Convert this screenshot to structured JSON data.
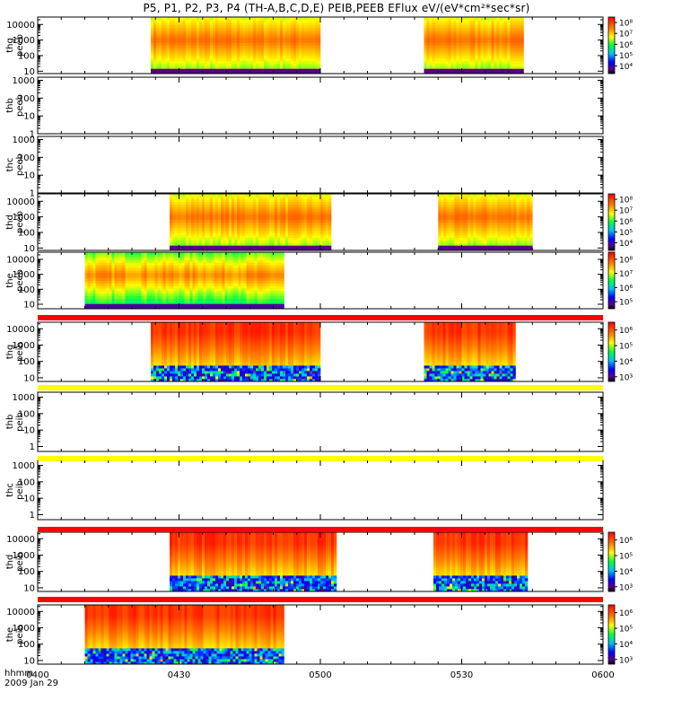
{
  "title": "P5, P1, P2, P3, P4 (TH-A,B,C,D,E) PEIB,PEEB EFlux eV/(eV*cm²*sec*sr)",
  "footer": {
    "time_label": "hhmm",
    "date_label": "2009 Jan 29"
  },
  "colors": {
    "flag_red": "#ff0000",
    "flag_yellow": "#ffff00"
  },
  "chart_data": {
    "type": "heatmap",
    "x_ticks": [
      "0400",
      "0430",
      "0500",
      "0530",
      "0600"
    ],
    "x_range": [
      "0400",
      "0600"
    ],
    "flag_bars": [
      {
        "after_panel": 4,
        "color": "red"
      },
      {
        "after_panel": 5,
        "color": "yellow"
      },
      {
        "after_panel": 6,
        "color": "yellow"
      },
      {
        "after_panel": 7,
        "color": "red"
      },
      {
        "after_panel": 8,
        "color": "red"
      }
    ],
    "panels": [
      {
        "ylabel": [
          "thg",
          "peeb"
        ],
        "yticks": [
          "10",
          "100",
          "1000",
          "10000"
        ],
        "ylog": [
          7,
          30000
        ],
        "coverage": [
          [
            "0424",
            "0500"
          ],
          [
            "0522",
            "0543"
          ]
        ],
        "colorbar": [
          "10⁴",
          "10⁵",
          "10⁶",
          "10⁷",
          "10⁸"
        ],
        "cb_range": [
          3.3,
          8.5
        ],
        "hot": [
          6.7,
          7.6
        ]
      },
      {
        "ylabel": [
          "thb",
          "peeb"
        ],
        "yticks": [
          "1",
          "10",
          "100",
          "1000"
        ],
        "ylog": [
          1,
          1500
        ],
        "coverage": [],
        "colorbar": [],
        "cb_range": [
          0,
          1
        ],
        "hot": [
          0,
          0
        ]
      },
      {
        "ylabel": [
          "thc",
          "peeb"
        ],
        "yticks": [
          "1",
          "10",
          "100",
          "1000"
        ],
        "ylog": [
          1,
          1500
        ],
        "coverage": [],
        "colorbar": [],
        "cb_range": [
          0,
          1
        ],
        "hot": [
          0,
          0
        ]
      },
      {
        "ylabel": [
          "thd",
          "peeb"
        ],
        "yticks": [
          "10",
          "100",
          "1000",
          "10000"
        ],
        "ylog": [
          7,
          30000
        ],
        "coverage": [
          [
            "0428",
            "0502"
          ],
          [
            "0525",
            "0545"
          ]
        ],
        "colorbar": [
          "10⁴",
          "10⁵",
          "10⁶",
          "10⁷",
          "10⁸"
        ],
        "cb_range": [
          3.3,
          8.5
        ],
        "hot": [
          6.7,
          7.6
        ]
      },
      {
        "ylabel": [
          "the",
          "peeb"
        ],
        "yticks": [
          "10",
          "100",
          "1000",
          "10000"
        ],
        "ylog": [
          5,
          30000
        ],
        "coverage": [
          [
            "0410",
            "0452"
          ]
        ],
        "colorbar": [
          "10⁵",
          "10⁶",
          "10⁷",
          "10⁸"
        ],
        "cb_range": [
          4.5,
          8.5
        ],
        "hot": [
          6.8,
          7.7
        ]
      },
      {
        "ylabel": [
          "thg",
          "peib"
        ],
        "yticks": [
          "10",
          "100",
          "1000",
          "10000"
        ],
        "ylog": [
          6,
          25000
        ],
        "coverage": [
          [
            "0424",
            "0500"
          ],
          [
            "0522",
            "0541"
          ]
        ],
        "colorbar": [
          "10³",
          "10⁴",
          "10⁵",
          "10⁶"
        ],
        "cb_range": [
          2.7,
          6.5
        ],
        "hot": [
          5.4,
          6.2
        ]
      },
      {
        "ylabel": [
          "thb",
          "peib"
        ],
        "yticks": [
          "1",
          "10",
          "100",
          "1000"
        ],
        "ylog": [
          0.5,
          2000
        ],
        "coverage": [],
        "colorbar": [],
        "cb_range": [
          0,
          1
        ],
        "hot": [
          0,
          0
        ]
      },
      {
        "ylabel": [
          "thc",
          "peib"
        ],
        "yticks": [
          "1",
          "10",
          "100",
          "1000"
        ],
        "ylog": [
          0.5,
          2000
        ],
        "coverage": [],
        "colorbar": [],
        "cb_range": [
          0,
          1
        ],
        "hot": [
          0,
          0
        ]
      },
      {
        "ylabel": [
          "thd",
          "peib"
        ],
        "yticks": [
          "10",
          "100",
          "1000",
          "10000"
        ],
        "ylog": [
          6,
          25000
        ],
        "coverage": [
          [
            "0428",
            "0503"
          ],
          [
            "0524",
            "0544"
          ]
        ],
        "colorbar": [
          "10³",
          "10⁴",
          "10⁵",
          "10⁶"
        ],
        "cb_range": [
          2.7,
          6.5
        ],
        "hot": [
          5.4,
          6.2
        ]
      },
      {
        "ylabel": [
          "the",
          "peib"
        ],
        "yticks": [
          "10",
          "100",
          "1000",
          "10000"
        ],
        "ylog": [
          6,
          25000
        ],
        "coverage": [
          [
            "0410",
            "0452"
          ]
        ],
        "colorbar": [
          "10³",
          "10⁴",
          "10⁵",
          "10⁶"
        ],
        "cb_range": [
          2.7,
          6.5
        ],
        "hot": [
          5.4,
          6.2
        ]
      }
    ]
  }
}
